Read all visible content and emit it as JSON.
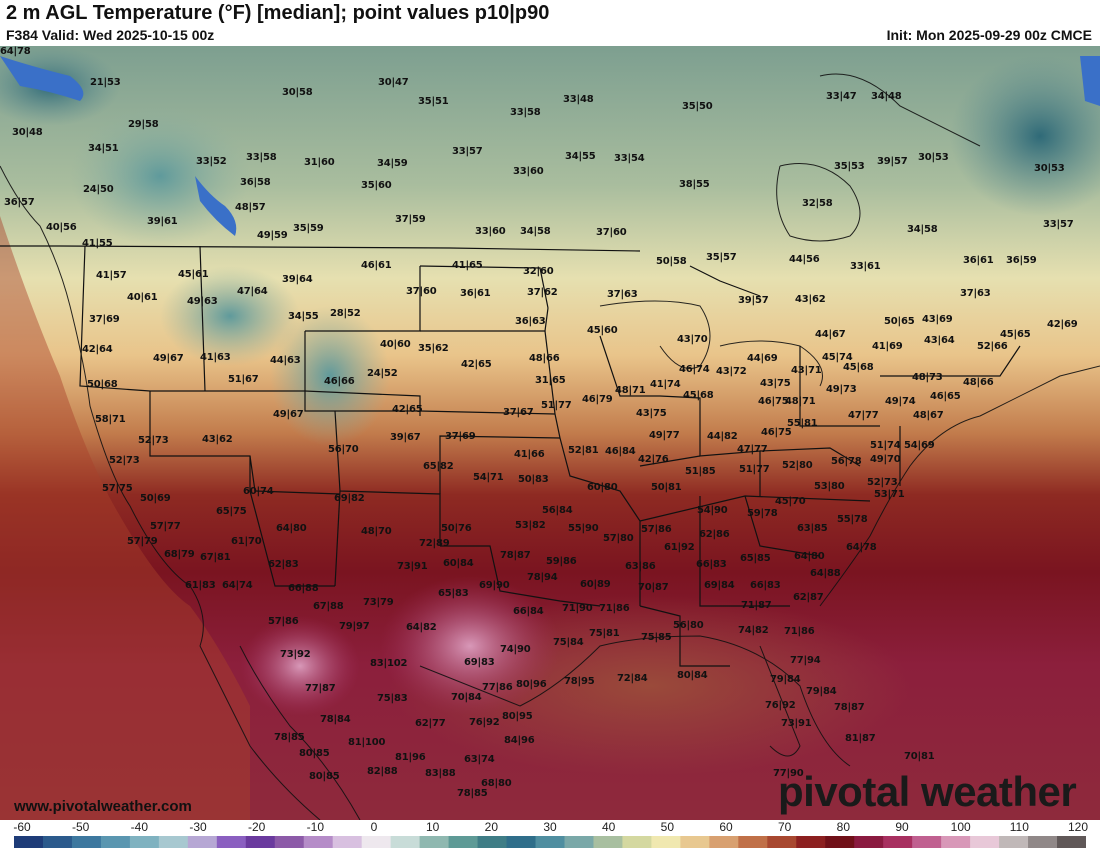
{
  "header": {
    "title": "2 m AGL Temperature (°F) [median]; point values p10|p90",
    "valid": "F384 Valid: Wed 2025-10-15 00z",
    "init": "Init: Mon 2025-09-29 00z CMCE"
  },
  "footer": {
    "website": "www.pivotalweather.com",
    "brand": "pivotal weather"
  },
  "colorbar": {
    "ticks": [
      "-60",
      "-50",
      "-40",
      "-30",
      "-20",
      "-10",
      "0",
      "10",
      "20",
      "30",
      "40",
      "50",
      "60",
      "70",
      "80",
      "90",
      "100",
      "110",
      "120"
    ],
    "colors": [
      "#1e3c78",
      "#2b5a8c",
      "#3d789f",
      "#5a96b0",
      "#7fb2c0",
      "#a7c8d0",
      "#b6a7d4",
      "#8a5fc0",
      "#6a3a9e",
      "#8c5aa8",
      "#b58cc8",
      "#d8c0e0",
      "#eee8ee",
      "#c8dcd8",
      "#8fb8b0",
      "#5e9a96",
      "#3f7d86",
      "#2f6e8a",
      "#4f8ea0",
      "#7aa8a8",
      "#a8bfa0",
      "#d4d8a0",
      "#f0e8b0",
      "#e8c890",
      "#d8a070",
      "#c07048",
      "#a84830",
      "#8c2020",
      "#701018",
      "#8a1a40",
      "#a83060",
      "#c06090",
      "#d898b8",
      "#e8c8d8",
      "#c0b8b8",
      "#908888",
      "#605858"
    ]
  },
  "points": [
    {
      "t": "21|53"
    },
    {
      "t": "30|58"
    },
    {
      "t": "30|47"
    },
    {
      "t": "35|51"
    },
    {
      "t": "33|48"
    },
    {
      "t": "35|50"
    },
    {
      "t": "33|47"
    },
    {
      "t": "34|48"
    },
    {
      "t": "30|48"
    },
    {
      "t": "29|58"
    },
    {
      "t": "33|58"
    },
    {
      "t": "34|51"
    },
    {
      "t": "33|52"
    },
    {
      "t": "33|58"
    },
    {
      "t": "31|60"
    },
    {
      "t": "34|59"
    },
    {
      "t": "33|57"
    },
    {
      "t": "34|55"
    },
    {
      "t": "33|54"
    },
    {
      "t": "35|53"
    },
    {
      "t": "39|57"
    },
    {
      "t": "30|53"
    },
    {
      "t": "30|53"
    },
    {
      "t": "24|50"
    },
    {
      "t": "36|58"
    },
    {
      "t": "35|60"
    },
    {
      "t": "33|60"
    },
    {
      "t": "38|55"
    },
    {
      "t": "36|57"
    },
    {
      "t": "48|57"
    },
    {
      "t": "32|58"
    },
    {
      "t": "39|61"
    },
    {
      "t": "40|56"
    },
    {
      "t": "49|59"
    },
    {
      "t": "35|59"
    },
    {
      "t": "37|59"
    },
    {
      "t": "33|60"
    },
    {
      "t": "34|58"
    },
    {
      "t": "37|60"
    },
    {
      "t": "34|58"
    },
    {
      "t": "33|57"
    },
    {
      "t": "41|55"
    },
    {
      "t": "50|58"
    },
    {
      "t": "35|57"
    },
    {
      "t": "44|56"
    },
    {
      "t": "33|61"
    },
    {
      "t": "36|61"
    },
    {
      "t": "36|59"
    },
    {
      "t": "41|57"
    },
    {
      "t": "45|61"
    },
    {
      "t": "46|61"
    },
    {
      "t": "41|65"
    },
    {
      "t": "32|60"
    },
    {
      "t": "39|64"
    },
    {
      "t": "37|60"
    },
    {
      "t": "36|61"
    },
    {
      "t": "37|62"
    },
    {
      "t": "37|63"
    },
    {
      "t": "39|57"
    },
    {
      "t": "43|62"
    },
    {
      "t": "37|63"
    },
    {
      "t": "40|61"
    },
    {
      "t": "49|63"
    },
    {
      "t": "47|64"
    },
    {
      "t": "34|55"
    },
    {
      "t": "28|52"
    },
    {
      "t": "36|63"
    },
    {
      "t": "37|69"
    },
    {
      "t": "50|65"
    },
    {
      "t": "43|69"
    },
    {
      "t": "42|69"
    },
    {
      "t": "45|60"
    },
    {
      "t": "43|70"
    },
    {
      "t": "44|67"
    },
    {
      "t": "45|65"
    },
    {
      "t": "43|64"
    },
    {
      "t": "42|64"
    },
    {
      "t": "49|67"
    },
    {
      "t": "41|63"
    },
    {
      "t": "44|63"
    },
    {
      "t": "40|60"
    },
    {
      "t": "35|62"
    },
    {
      "t": "42|65"
    },
    {
      "t": "41|69"
    },
    {
      "t": "52|66"
    },
    {
      "t": "48|66"
    },
    {
      "t": "44|69"
    },
    {
      "t": "45|74"
    },
    {
      "t": "51|67"
    },
    {
      "t": "46|66"
    },
    {
      "t": "24|52"
    },
    {
      "t": "31|65"
    },
    {
      "t": "46|74"
    },
    {
      "t": "43|72"
    },
    {
      "t": "43|71"
    },
    {
      "t": "45|68"
    },
    {
      "t": "48|73"
    },
    {
      "t": "48|66"
    },
    {
      "t": "50|68"
    },
    {
      "t": "48|71"
    },
    {
      "t": "41|74"
    },
    {
      "t": "43|75"
    },
    {
      "t": "49|73"
    },
    {
      "t": "45|68"
    },
    {
      "t": "46|75"
    },
    {
      "t": "48|71"
    },
    {
      "t": "49|74"
    },
    {
      "t": "46|65"
    },
    {
      "t": "49|67"
    },
    {
      "t": "42|65"
    },
    {
      "t": "37|67"
    },
    {
      "t": "51|77"
    },
    {
      "t": "46|79"
    },
    {
      "t": "43|75"
    },
    {
      "t": "47|77"
    },
    {
      "t": "48|67"
    },
    {
      "t": "58|71"
    },
    {
      "t": "55|81"
    },
    {
      "t": "52|73"
    },
    {
      "t": "43|62"
    },
    {
      "t": "39|67"
    },
    {
      "t": "37|69"
    },
    {
      "t": "49|77"
    },
    {
      "t": "44|82"
    },
    {
      "t": "46|75"
    },
    {
      "t": "51|74"
    },
    {
      "t": "54|69"
    },
    {
      "t": "56|70"
    },
    {
      "t": "41|66"
    },
    {
      "t": "52|81"
    },
    {
      "t": "46|84"
    },
    {
      "t": "47|77"
    },
    {
      "t": "52|73"
    },
    {
      "t": "65|82"
    },
    {
      "t": "42|76"
    },
    {
      "t": "52|80"
    },
    {
      "t": "56|78"
    },
    {
      "t": "49|70"
    },
    {
      "t": "54|71"
    },
    {
      "t": "50|83"
    },
    {
      "t": "51|85"
    },
    {
      "t": "51|77"
    },
    {
      "t": "52|73"
    },
    {
      "t": "57|75"
    },
    {
      "t": "60|74"
    },
    {
      "t": "60|80"
    },
    {
      "t": "50|81"
    },
    {
      "t": "53|80"
    },
    {
      "t": "50|69"
    },
    {
      "t": "69|82"
    },
    {
      "t": "45|70"
    },
    {
      "t": "53|71"
    },
    {
      "t": "65|75"
    },
    {
      "t": "56|84"
    },
    {
      "t": "54|90"
    },
    {
      "t": "59|78"
    },
    {
      "t": "55|78"
    },
    {
      "t": "57|77"
    },
    {
      "t": "64|80"
    },
    {
      "t": "48|70"
    },
    {
      "t": "50|76"
    },
    {
      "t": "53|82"
    },
    {
      "t": "55|90"
    },
    {
      "t": "57|86"
    },
    {
      "t": "63|85"
    },
    {
      "t": "57|79"
    },
    {
      "t": "61|70"
    },
    {
      "t": "72|89"
    },
    {
      "t": "57|80"
    },
    {
      "t": "62|86"
    },
    {
      "t": "64|78"
    },
    {
      "t": "68|79"
    },
    {
      "t": "67|81"
    },
    {
      "t": "78|87"
    },
    {
      "t": "61|92"
    },
    {
      "t": "64|80"
    },
    {
      "t": "62|83"
    },
    {
      "t": "73|91"
    },
    {
      "t": "60|84"
    },
    {
      "t": "59|86"
    },
    {
      "t": "63|86"
    },
    {
      "t": "66|83"
    },
    {
      "t": "65|85"
    },
    {
      "t": "61|83"
    },
    {
      "t": "64|74"
    },
    {
      "t": "78|94"
    },
    {
      "t": "64|88"
    },
    {
      "t": "66|88"
    },
    {
      "t": "69|90"
    },
    {
      "t": "60|89"
    },
    {
      "t": "70|87"
    },
    {
      "t": "69|84"
    },
    {
      "t": "66|83"
    },
    {
      "t": "65|83"
    },
    {
      "t": "62|87"
    },
    {
      "t": "73|79"
    },
    {
      "t": "67|88"
    },
    {
      "t": "66|84"
    },
    {
      "t": "71|90"
    },
    {
      "t": "71|86"
    },
    {
      "t": "71|87"
    },
    {
      "t": "57|86"
    },
    {
      "t": "79|97"
    },
    {
      "t": "64|82"
    },
    {
      "t": "56|80"
    },
    {
      "t": "74|82"
    },
    {
      "t": "71|86"
    },
    {
      "t": "75|81"
    },
    {
      "t": "75|85"
    },
    {
      "t": "75|84"
    },
    {
      "t": "74|90"
    },
    {
      "t": "73|92"
    },
    {
      "t": "83|102"
    },
    {
      "t": "69|83"
    },
    {
      "t": "77|94"
    },
    {
      "t": "72|84"
    },
    {
      "t": "80|84"
    },
    {
      "t": "79|84"
    },
    {
      "t": "77|87"
    },
    {
      "t": "80|96"
    },
    {
      "t": "77|86"
    },
    {
      "t": "78|95"
    },
    {
      "t": "79|84"
    },
    {
      "t": "75|83"
    },
    {
      "t": "70|84"
    },
    {
      "t": "76|92"
    },
    {
      "t": "78|87"
    },
    {
      "t": "78|84"
    },
    {
      "t": "80|95"
    },
    {
      "t": "76|92"
    },
    {
      "t": "62|77"
    },
    {
      "t": "73|91"
    },
    {
      "t": "78|85"
    },
    {
      "t": "81|100"
    },
    {
      "t": "84|96"
    },
    {
      "t": "81|87"
    },
    {
      "t": "80|85"
    },
    {
      "t": "81|96"
    },
    {
      "t": "70|81"
    },
    {
      "t": "80|85"
    },
    {
      "t": "82|88"
    },
    {
      "t": "83|88"
    },
    {
      "t": "63|74"
    },
    {
      "t": "68|80"
    },
    {
      "t": "77|90"
    },
    {
      "t": "78|85"
    },
    {
      "t": "64|78"
    }
  ]
}
